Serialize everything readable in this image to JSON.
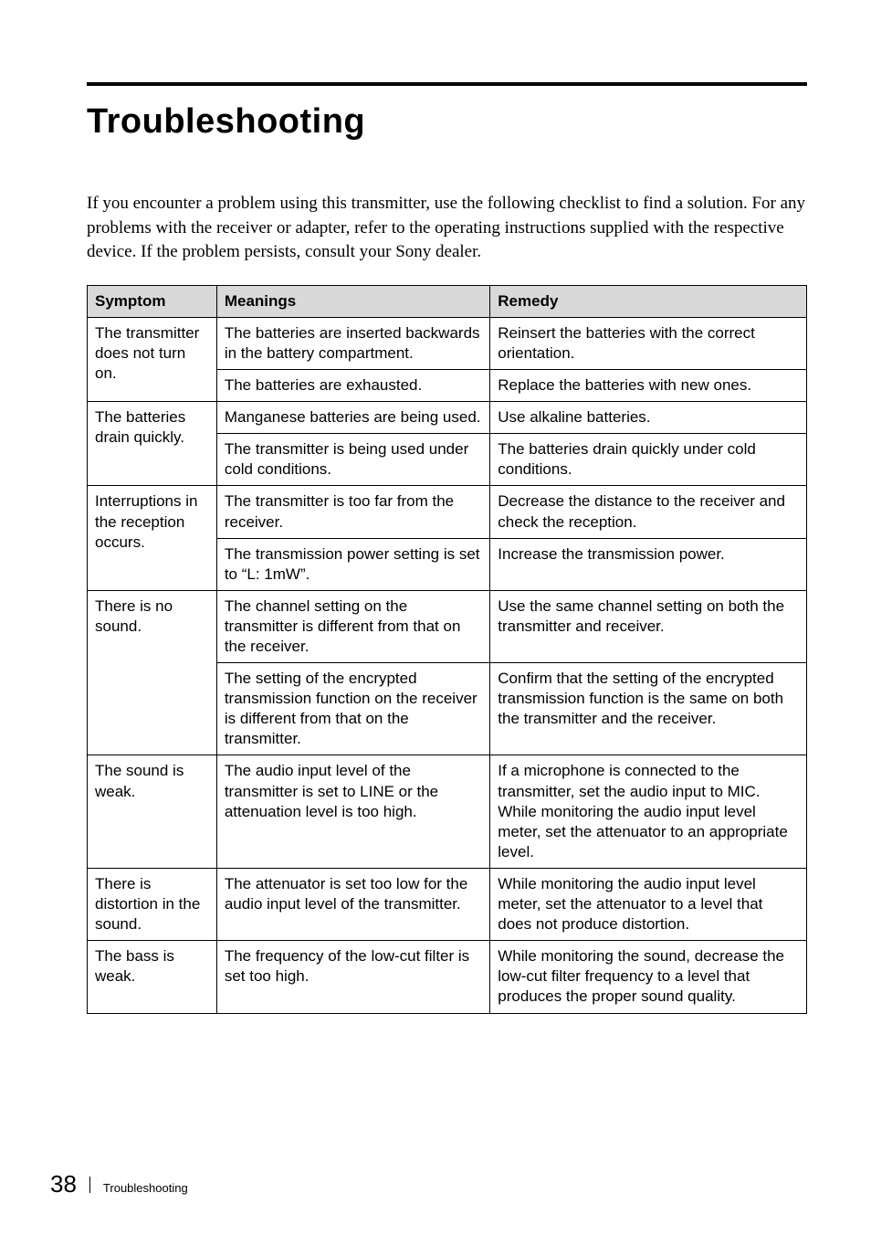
{
  "title": "Troubleshooting",
  "intro": "If you encounter a problem using this transmitter, use the following checklist to find a solution. For any problems with the receiver or adapter, refer to the operating instructions supplied with the respective device. If the problem persists, consult your Sony dealer.",
  "table": {
    "headers": {
      "c1": "Symptom",
      "c2": "Meanings",
      "c3": "Remedy"
    },
    "rows": [
      {
        "symptom": "The transmitter does not turn on.",
        "symptom_rowspan": 2,
        "meaning": "The batteries are inserted backwards in the battery compartment.",
        "remedy": "Reinsert the batteries with the correct orientation."
      },
      {
        "meaning": "The batteries are exhausted.",
        "remedy": "Replace the batteries with new ones."
      },
      {
        "symptom": "The batteries drain quickly.",
        "symptom_rowspan": 2,
        "meaning": "Manganese batteries are being used.",
        "remedy": "Use alkaline batteries."
      },
      {
        "meaning": "The transmitter is being used under cold conditions.",
        "remedy": "The batteries drain quickly under cold conditions."
      },
      {
        "symptom": "Interruptions in the reception occurs.",
        "symptom_rowspan": 2,
        "meaning": "The transmitter is too far from the receiver.",
        "remedy": "Decrease the distance to the receiver and check the reception."
      },
      {
        "meaning": "The transmission power setting is set to “L: 1mW”.",
        "remedy": "Increase the transmission power."
      },
      {
        "symptom": "There is no sound.",
        "symptom_rowspan": 2,
        "meaning": "The channel setting on the transmitter is different from that on the receiver.",
        "remedy": "Use the same channel setting on both the transmitter and receiver."
      },
      {
        "meaning": "The setting of the encrypted transmission function on the receiver is different from that on the transmitter.",
        "remedy": "Confirm that the setting of the encrypted transmission function is the same on both the transmitter and the receiver."
      },
      {
        "symptom": "The sound is weak.",
        "symptom_rowspan": 1,
        "meaning": "The audio input level of the transmitter is set to LINE or the attenuation level is too high.",
        "remedy": "If a microphone is connected to the transmitter, set the audio input to MIC. While monitoring the audio input level meter, set the attenuator to an appropriate level."
      },
      {
        "symptom": "There is distortion in the sound.",
        "symptom_rowspan": 1,
        "meaning": "The attenuator is set too low for the audio input level of the transmitter.",
        "remedy": "While monitoring the audio input level meter, set the attenuator to a level that does not produce distortion."
      },
      {
        "symptom": "The bass is weak.",
        "symptom_rowspan": 1,
        "meaning": "The frequency of the low-cut filter is set too high.",
        "remedy": "While monitoring the sound, decrease the low-cut filter frequency to a level that produces the proper sound quality."
      }
    ]
  },
  "footer": {
    "page": "38",
    "label": "Troubleshooting"
  },
  "style": {
    "background": "#ffffff",
    "header_bg": "#d9d9d9",
    "border_color": "#000000",
    "title_fontsize": 38,
    "intro_fontsize": 19,
    "cell_fontsize": 17,
    "pagenum_fontsize": 26,
    "footer_fontsize": 13
  }
}
